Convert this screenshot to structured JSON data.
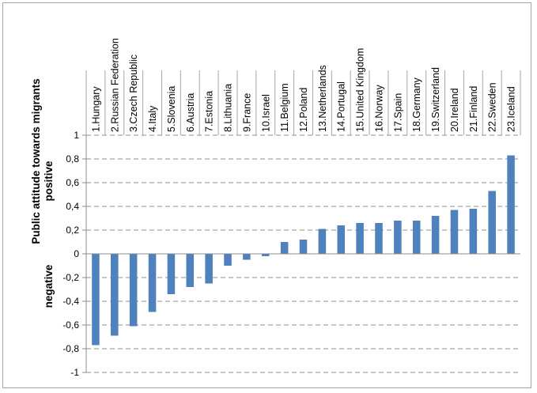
{
  "chart_data": {
    "type": "bar",
    "ylabel_top": "Public attitude towards migrants",
    "ylabel_positive": "positive",
    "ylabel_negative": "negative",
    "ylim": [
      -1,
      1
    ],
    "yticks": [
      "1",
      "0,8",
      "0,6",
      "0,4",
      "0,2",
      "0",
      "-0,2",
      "-0,4",
      "-0,6",
      "-0,8",
      "-1"
    ],
    "ytick_values": [
      1,
      0.8,
      0.6,
      0.4,
      0.2,
      0,
      -0.2,
      -0.4,
      -0.6,
      -0.8,
      -1
    ],
    "grid": "horizontal dashed",
    "bar_color": "#4f81bd",
    "categories": [
      "1.Hungary",
      "2.Russian Federation",
      "3.Czech Republic",
      "4.Italy",
      "5.Slovenia",
      "6.Austria",
      "7.Estonia",
      "8.Lithuania",
      "9.France",
      "10.Israel",
      "11.Belgium",
      "12.Poland",
      "13.Netherlands",
      "14.Portugal",
      "15.United Kingdom",
      "16.Norway",
      "17.Spain",
      "18.Germany",
      "19.Switzerland",
      "20.Ireland",
      "21.Finland",
      "22.Sweden",
      "23.Iceland"
    ],
    "values": [
      -0.77,
      -0.69,
      -0.61,
      -0.49,
      -0.34,
      -0.28,
      -0.25,
      -0.1,
      -0.05,
      -0.02,
      0.1,
      0.12,
      0.21,
      0.24,
      0.26,
      0.26,
      0.28,
      0.28,
      0.32,
      0.37,
      0.38,
      0.53,
      0.83
    ]
  }
}
